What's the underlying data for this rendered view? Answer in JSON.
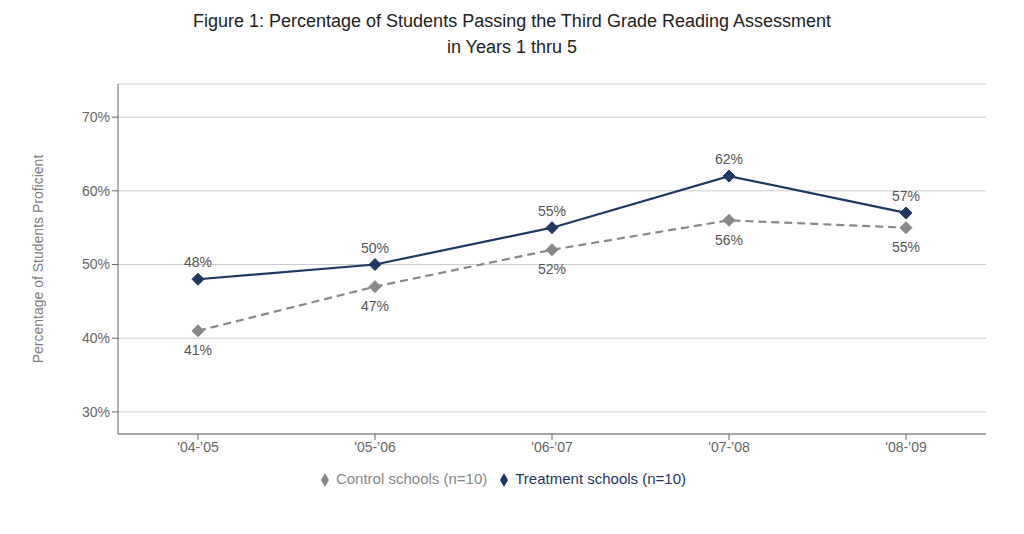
{
  "chart_data": {
    "type": "line",
    "title": "Figure 1: Percentage of Students Passing the Third Grade Reading Assessment\nin Years 1 thru 5",
    "ylabel": "Percentage of Students Proficient",
    "categories": [
      "'04-’05",
      "'05-’06",
      "'06-’07",
      "'07-’08",
      "'08-’09"
    ],
    "series": [
      {
        "name": "Treatment schools (n=10)",
        "color": "#1F3864",
        "values": [
          0.48,
          0.5,
          0.55,
          0.62,
          0.57
        ],
        "value_labels": [
          "48%",
          "50%",
          "55%",
          "62%",
          "57%"
        ],
        "marker": "diamond",
        "line_style": "solid"
      },
      {
        "name": "Control schools (n=10)",
        "color": "#888888",
        "values": [
          0.41,
          0.47,
          0.52,
          0.56,
          0.55
        ],
        "value_labels": [
          "41%",
          "47%",
          "52%",
          "56%",
          "55%"
        ],
        "marker": "diamond",
        "line_style": "dashed"
      }
    ],
    "ylim": [
      0.27,
      0.745
    ],
    "yticks": [
      {
        "value": 0.3,
        "label": "30%"
      },
      {
        "value": 0.4,
        "label": "40%"
      },
      {
        "value": 0.5,
        "label": "50%"
      },
      {
        "value": 0.6,
        "label": "60%"
      },
      {
        "value": 0.7,
        "label": "70%"
      }
    ],
    "grid": true,
    "legend": "bottom",
    "data_labels": true
  }
}
